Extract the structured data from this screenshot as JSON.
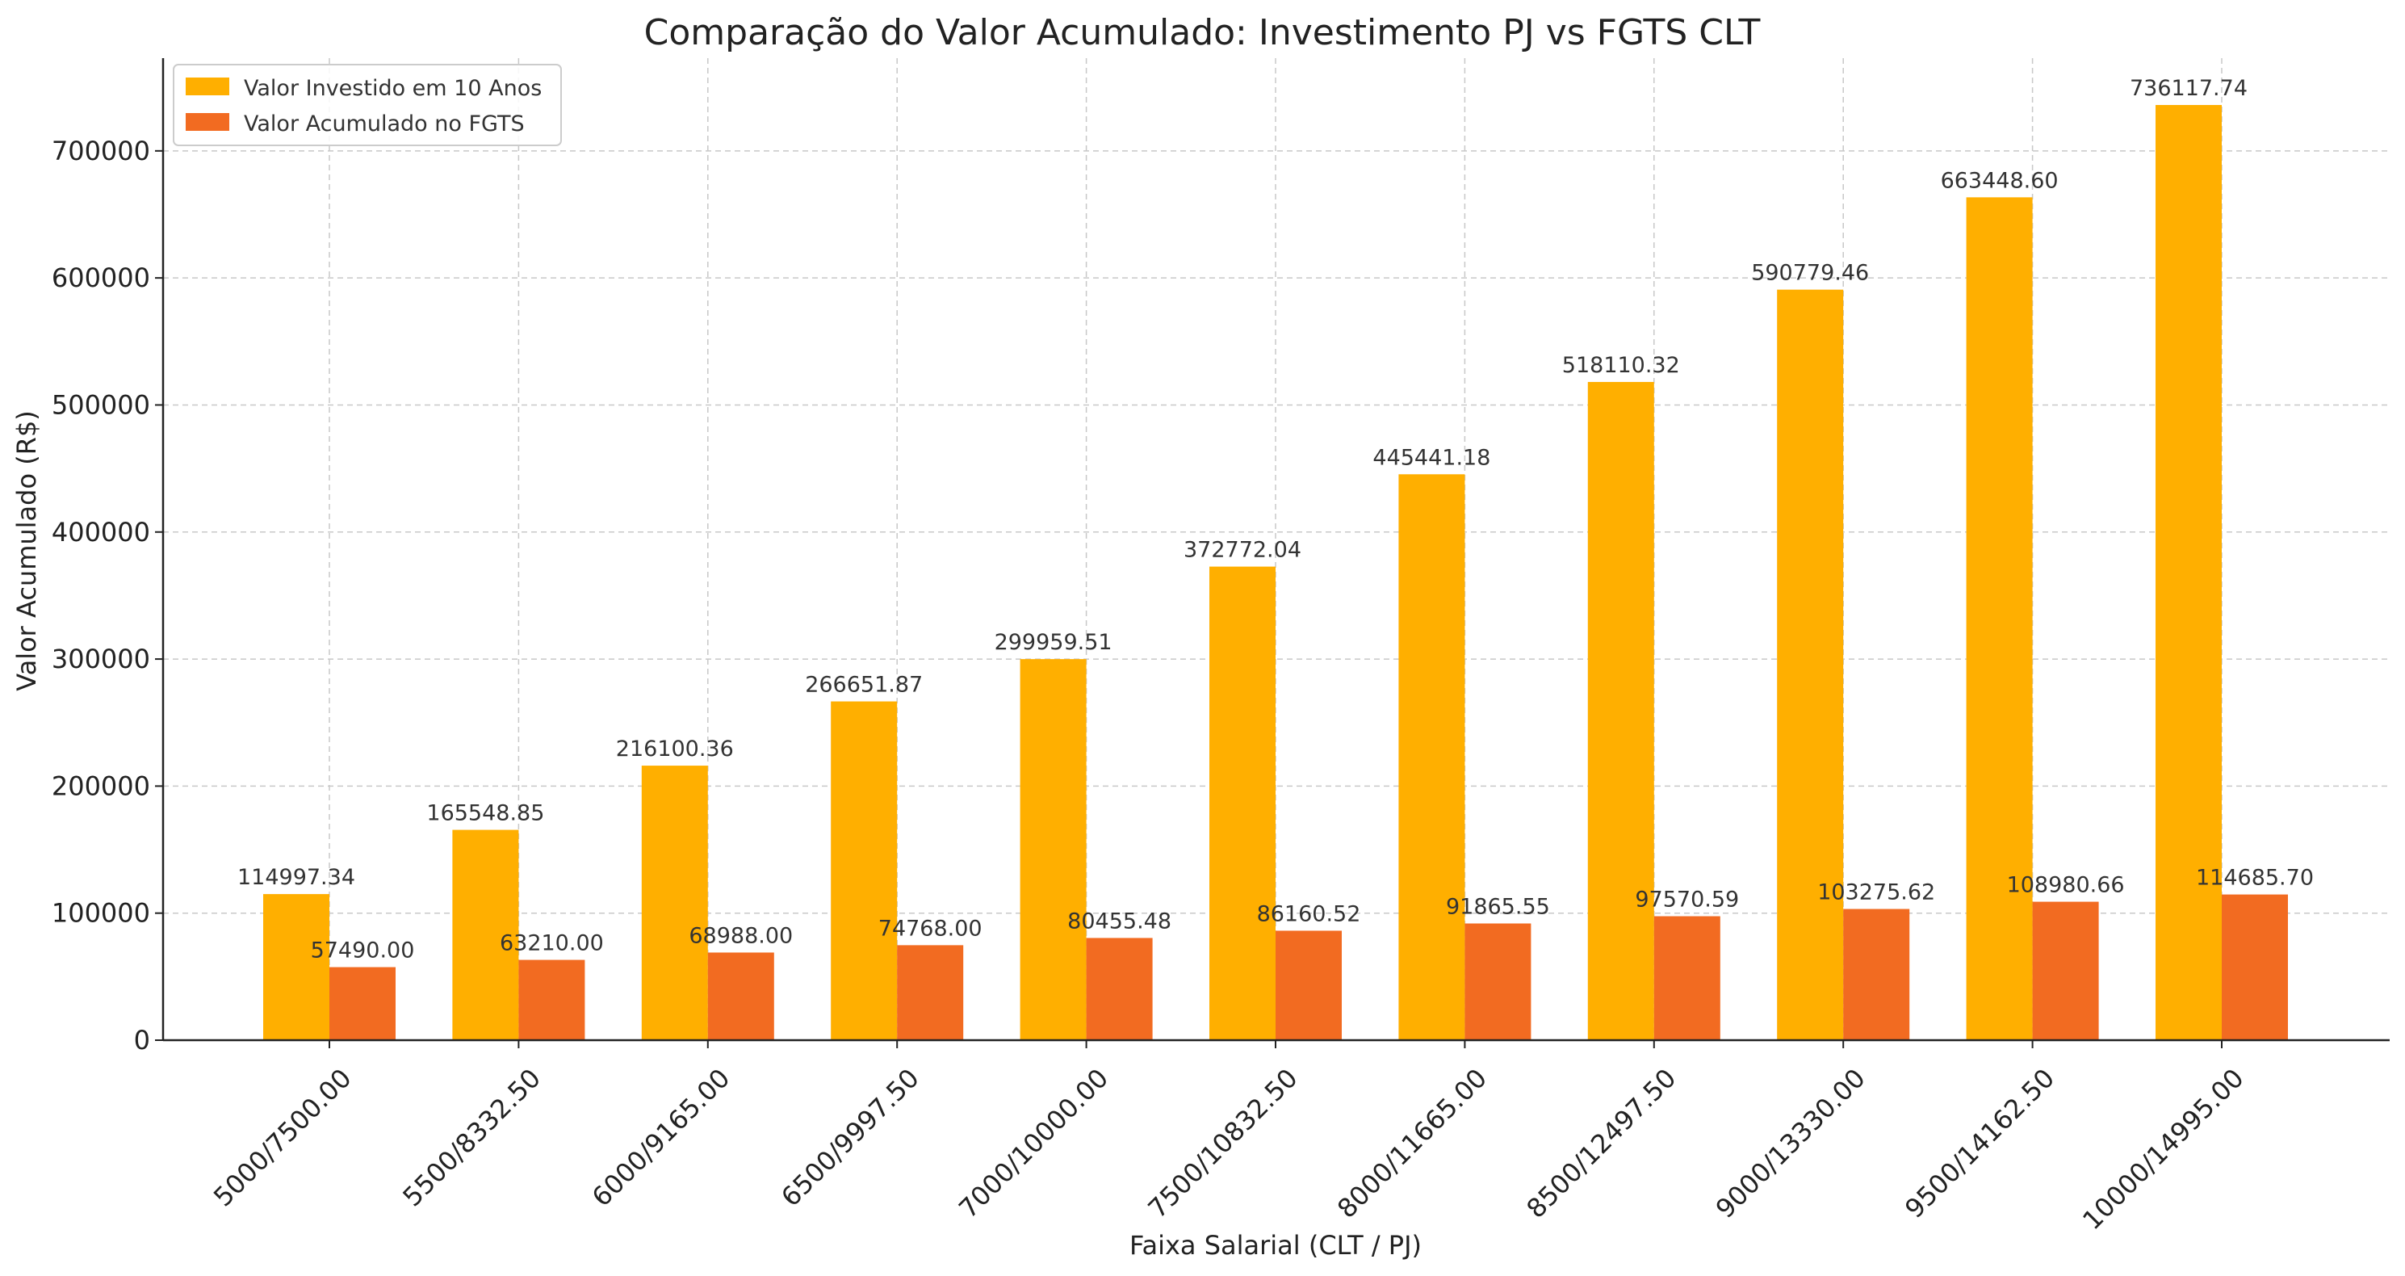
{
  "chart_data": {
    "type": "bar",
    "title": "Comparação do Valor Acumulado: Investimento PJ vs FGTS CLT",
    "xlabel": "Faixa Salarial (CLT / PJ)",
    "ylabel": "Valor Acumulado (R$)",
    "ylim": [
      0,
      773000
    ],
    "yticks": [
      0,
      100000,
      200000,
      300000,
      400000,
      500000,
      600000,
      700000
    ],
    "grid": true,
    "legend_position": "top-left",
    "categories": [
      "5000/7500.00",
      "5500/8332.50",
      "6000/9165.00",
      "6500/9997.50",
      "7000/10000.00",
      "7500/10832.50",
      "8000/11665.00",
      "8500/12497.50",
      "9000/13330.00",
      "9500/14162.50",
      "10000/14995.00"
    ],
    "series": [
      {
        "name": "Valor Investido em 10 Anos",
        "color": "#FFAF00",
        "values": [
          114997.34,
          165548.85,
          216100.36,
          266651.87,
          299959.51,
          372772.04,
          445441.18,
          518110.32,
          590779.46,
          663448.6,
          736117.74
        ],
        "labels": [
          "114997.34",
          "165548.85",
          "216100.36",
          "266651.87",
          "299959.51",
          "372772.04",
          "445441.18",
          "518110.32",
          "590779.46",
          "663448.60",
          "736117.74"
        ]
      },
      {
        "name": "Valor Acumulado no FGTS",
        "color": "#F26B21",
        "values": [
          57490.0,
          63210.0,
          68988.0,
          74768.0,
          80455.48,
          86160.52,
          91865.55,
          97570.59,
          103275.62,
          108980.66,
          114685.7
        ],
        "labels": [
          "57490.00",
          "63210.00",
          "68988.00",
          "74768.00",
          "80455.48",
          "86160.52",
          "91865.55",
          "97570.59",
          "103275.62",
          "108980.66",
          "114685.70"
        ]
      }
    ]
  }
}
